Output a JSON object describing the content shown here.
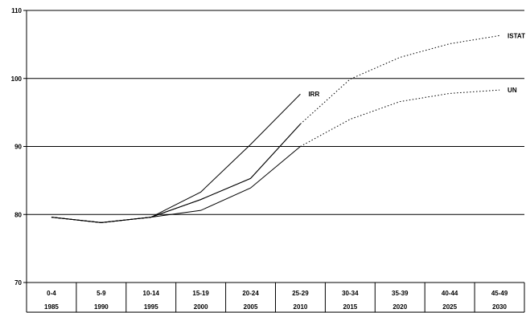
{
  "chart_data": {
    "type": "line",
    "title": "",
    "xlabel": "",
    "ylabel": "",
    "ylim": [
      70,
      110
    ],
    "yticks": [
      "70",
      "80",
      "90",
      "100",
      "110"
    ],
    "grid": true,
    "legend": "none",
    "categories": [
      {
        "age": "0-4",
        "year": "1985"
      },
      {
        "age": "5-9",
        "year": "1990"
      },
      {
        "age": "10-14",
        "year": "1995"
      },
      {
        "age": "15-19",
        "year": "2000"
      },
      {
        "age": "20-24",
        "year": "2005"
      },
      {
        "age": "25-29",
        "year": "2010"
      },
      {
        "age": "30-34",
        "year": "2015"
      },
      {
        "age": "35-39",
        "year": "2020"
      },
      {
        "age": "40-44",
        "year": "2025"
      },
      {
        "age": "45-49",
        "year": "2030"
      }
    ],
    "series": [
      {
        "name": "IRR",
        "values": [
          79.6,
          78.8,
          79.6,
          83.3,
          90.3,
          97.7,
          null,
          null,
          null,
          null
        ],
        "dotted_from": null
      },
      {
        "name": "ISTAT",
        "values": [
          79.6,
          78.8,
          79.6,
          82.2,
          85.3,
          93.3,
          99.9,
          103.1,
          105.1,
          106.3
        ],
        "dotted_from": 5
      },
      {
        "name": "UN",
        "values": [
          79.6,
          78.8,
          79.6,
          80.6,
          83.9,
          90.0,
          94.0,
          96.6,
          97.8,
          98.3
        ],
        "dotted_from": 5
      },
      {
        "name": "",
        "values": [
          79.6,
          78.8,
          79.6,
          82.2,
          85.3,
          93.3,
          null,
          null,
          null,
          null
        ],
        "dotted_from": null
      }
    ],
    "series_labels": [
      {
        "text": "IRR",
        "series": "IRR"
      },
      {
        "text": "ISTAT",
        "series": "ISTAT"
      },
      {
        "text": "UN",
        "series": "UN"
      }
    ]
  }
}
